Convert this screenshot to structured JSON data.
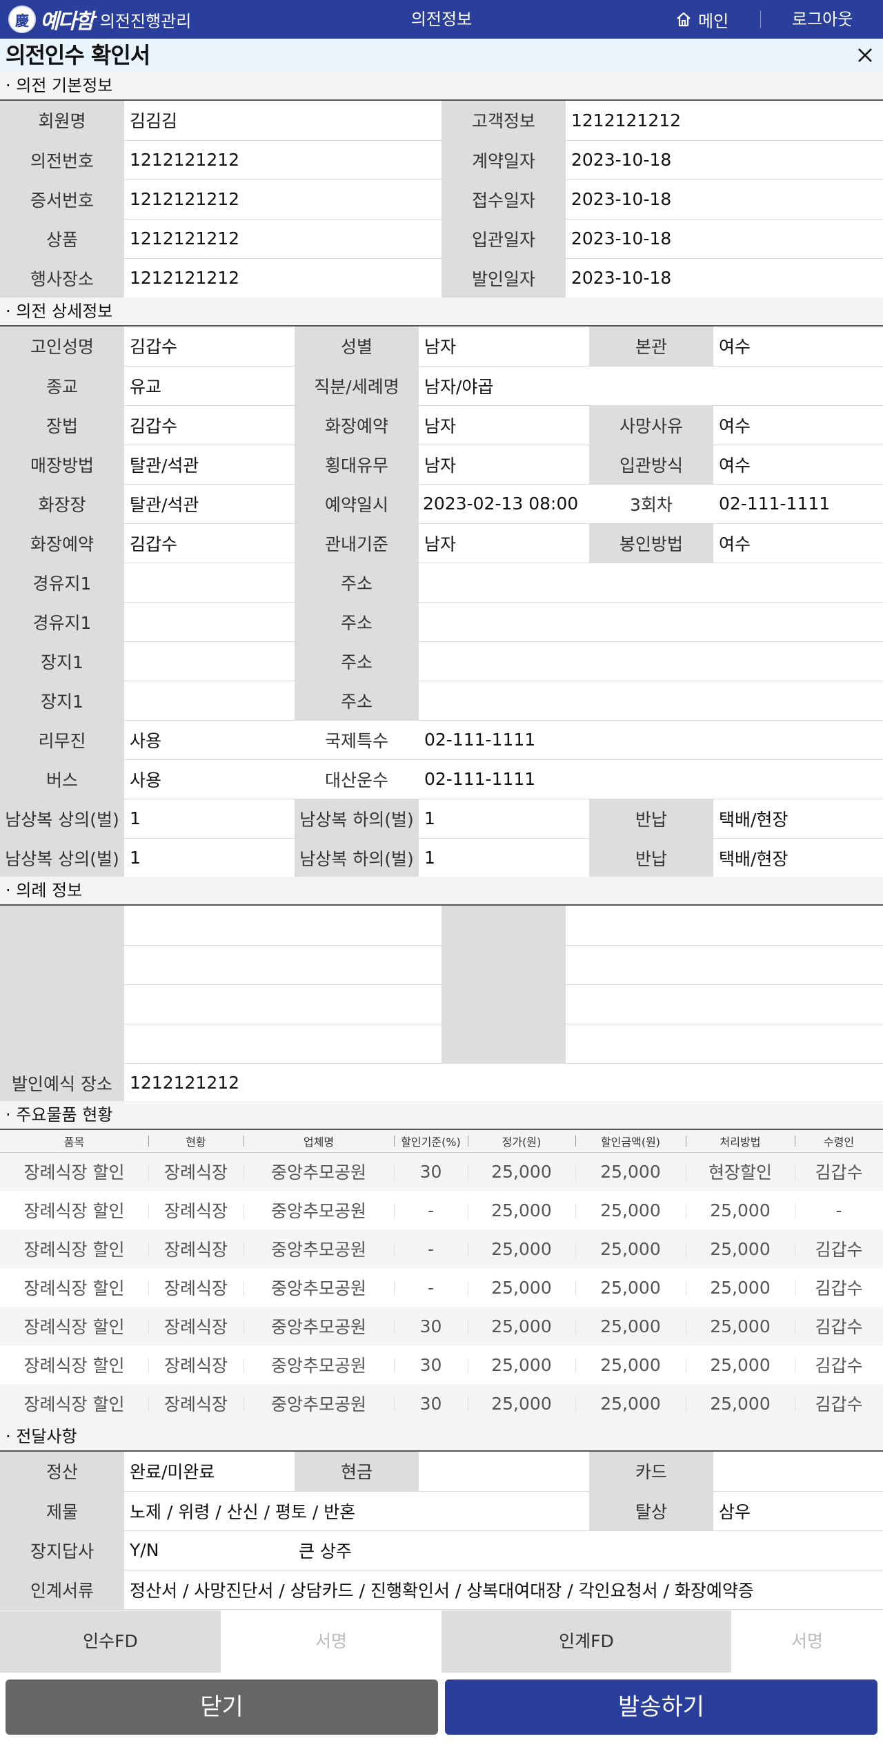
{
  "header": {
    "logo_mark": "慶",
    "brand": "예다함",
    "app_title": "의전진행관리",
    "center_title": "의전정보",
    "home_label": "메인",
    "logout_label": "로그아웃",
    "accent_color": "#2a3f9b"
  },
  "page": {
    "title": "의전인수 확인서"
  },
  "basic": {
    "section_title": "· 의전 기본정보",
    "rows": [
      [
        {
          "l": "회원명",
          "v": "김김김"
        },
        {
          "l": "고객정보",
          "v": "1212121212"
        }
      ],
      [
        {
          "l": "의전번호",
          "v": "1212121212"
        },
        {
          "l": "계약일자",
          "v": "2023-10-18"
        }
      ],
      [
        {
          "l": "증서번호",
          "v": "1212121212"
        },
        {
          "l": "접수일자",
          "v": "2023-10-18"
        }
      ],
      [
        {
          "l": "상품",
          "v": "1212121212"
        },
        {
          "l": "입관일자",
          "v": "2023-10-18"
        }
      ],
      [
        {
          "l": "행사장소",
          "v": "1212121212"
        },
        {
          "l": "발인일자",
          "v": "2023-10-18"
        }
      ]
    ]
  },
  "detail": {
    "section_title": "· 의전 상세정보",
    "r1": [
      "고인성명",
      "김갑수",
      "성별",
      "남자",
      "본관",
      "여수"
    ],
    "r2": [
      "종교",
      "유교",
      "직분/세례명",
      "남자/야곱"
    ],
    "r3": [
      "장법",
      "김갑수",
      "화장예약",
      "남자",
      "사망사유",
      "여수"
    ],
    "r4": [
      "매장방법",
      "탈관/석관",
      "횡대유무",
      "남자",
      "입관방식",
      "여수"
    ],
    "r5": [
      "화장장",
      "탈관/석관",
      "예약일시",
      "2023-02-13 08:00",
      "3회차",
      "02-111-1111"
    ],
    "r6": [
      "화장예약",
      "김갑수",
      "관내기준",
      "남자",
      "봉인방법",
      "여수"
    ],
    "r7": [
      "경유지1",
      "",
      "주소",
      ""
    ],
    "r8": [
      "경유지1",
      "",
      "주소",
      ""
    ],
    "r9": [
      "장지1",
      "",
      "주소",
      ""
    ],
    "r10": [
      "장지1",
      "",
      "주소",
      ""
    ],
    "r11": [
      "리무진",
      "사용",
      "국제특수",
      "02-111-1111"
    ],
    "r12": [
      "버스",
      "사용",
      "대산운수",
      "02-111-1111"
    ],
    "r13": [
      "남상복 상의(벌)",
      "1",
      "남상복 하의(벌)",
      "1",
      "반납",
      "택배/현장"
    ],
    "r14": [
      "남상복 상의(벌)",
      "1",
      "남상복 하의(벌)",
      "1",
      "반납",
      "택배/현장"
    ]
  },
  "rite": {
    "section_title": "· 의례 정보",
    "place_label": "발인예식 장소",
    "place_value": "1212121212"
  },
  "items": {
    "section_title": "· 주요물품 현황",
    "columns": [
      "품목",
      "현황",
      "업체명",
      "할인기준(%)",
      "정가(원)",
      "할인금액(원)",
      "처리방법",
      "수령인"
    ],
    "rows": [
      [
        "장례식장 할인",
        "장례식장",
        "중앙추모공원",
        "30",
        "25,000",
        "25,000",
        "현장할인",
        "김갑수"
      ],
      [
        "장례식장 할인",
        "장례식장",
        "중앙추모공원",
        "-",
        "25,000",
        "25,000",
        "25,000",
        "-"
      ],
      [
        "장례식장 할인",
        "장례식장",
        "중앙추모공원",
        "-",
        "25,000",
        "25,000",
        "25,000",
        "김갑수"
      ],
      [
        "장례식장 할인",
        "장례식장",
        "중앙추모공원",
        "-",
        "25,000",
        "25,000",
        "25,000",
        "김갑수"
      ],
      [
        "장례식장 할인",
        "장례식장",
        "중앙추모공원",
        "30",
        "25,000",
        "25,000",
        "25,000",
        "김갑수"
      ],
      [
        "장례식장 할인",
        "장례식장",
        "중앙추모공원",
        "30",
        "25,000",
        "25,000",
        "25,000",
        "김갑수"
      ],
      [
        "장례식장 할인",
        "장례식장",
        "중앙추모공원",
        "30",
        "25,000",
        "25,000",
        "25,000",
        "김갑수"
      ]
    ]
  },
  "notes": {
    "section_title": "· 전달사항",
    "r1": [
      "정산",
      "완료/미완료",
      "현금",
      "",
      "카드",
      ""
    ],
    "r2": [
      "제물",
      "노제 / 위령 / 산신 / 평토 / 반혼",
      "탈상",
      "삼우"
    ],
    "r3": [
      "장지답사",
      "Y/N",
      "큰 상주"
    ],
    "r4": [
      "인계서류",
      "정산서 / 사망진단서 / 상담카드 / 진행확인서 / 상복대여대장 / 각인요청서 / 화장예약증"
    ]
  },
  "sign": {
    "receiver_label": "인수FD",
    "receiver_sign": "서명",
    "handover_label": "인계FD",
    "handover_sign": "서명"
  },
  "footer": {
    "close_label": "닫기",
    "send_label": "발송하기",
    "close_color": "#666666",
    "send_color": "#2a3f9b"
  }
}
